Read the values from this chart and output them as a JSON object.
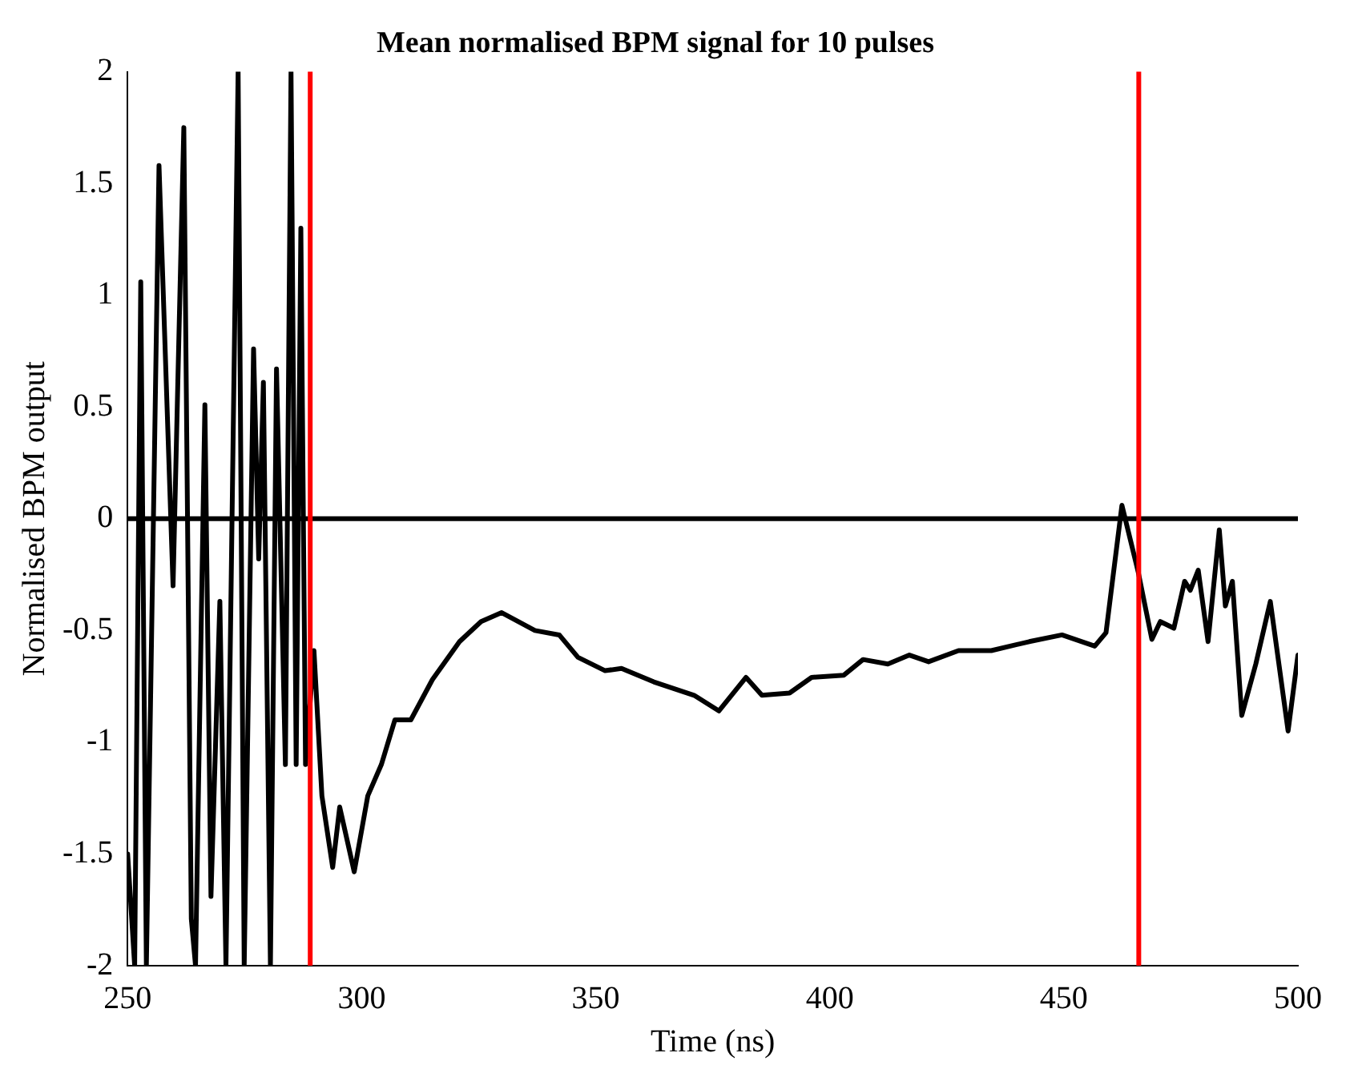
{
  "chart_data": {
    "type": "line",
    "title": "Mean normalised BPM signal for 10 pulses",
    "xlabel": "Time (ns)",
    "ylabel": "Normalised BPM output",
    "x": [
      250,
      251.5,
      252.8,
      254,
      256.7,
      259.7,
      262,
      263.6,
      264.5,
      266.5,
      267.8,
      269.7,
      271,
      273.6,
      274.9,
      276.9,
      278,
      279,
      280.5,
      281.8,
      283.7,
      284.9,
      286,
      287,
      288,
      289.8,
      291.5,
      293.8,
      295.3,
      298.4,
      301.3,
      304.2,
      307.1,
      310.5,
      315.1,
      320.9,
      325.5,
      329.9,
      337,
      342.2,
      346.2,
      352,
      355.5,
      362.4,
      371,
      376.3,
      382.1,
      385.5,
      391.4,
      396.1,
      403,
      407.1,
      412.4,
      417,
      421.1,
      427.5,
      434.5,
      442.6,
      449.6,
      456.6,
      459,
      462.4,
      465.9,
      468.8,
      470.6,
      473.5,
      475.8,
      477,
      478.7,
      480.8,
      483.2,
      484.5,
      486,
      488,
      491,
      494.1,
      497.9,
      500
    ],
    "series": [
      {
        "color": "#000000",
        "values": [
          -1.5,
          -2,
          1.06,
          -2,
          1.58,
          -0.3,
          1.75,
          -1.79,
          -2,
          0.51,
          -1.69,
          -0.37,
          -2,
          2,
          -2,
          0.76,
          -0.18,
          0.61,
          -2,
          0.67,
          -1.1,
          2,
          -1.1,
          1.3,
          -1.1,
          -0.59,
          -1.24,
          -1.56,
          -1.29,
          -1.58,
          -1.24,
          -1.1,
          -0.9,
          -0.9,
          -0.72,
          -0.55,
          -0.46,
          -0.42,
          -0.5,
          -0.52,
          -0.62,
          -0.68,
          -0.67,
          -0.73,
          -0.79,
          -0.86,
          -0.71,
          -0.79,
          -0.78,
          -0.71,
          -0.7,
          -0.63,
          -0.65,
          -0.61,
          -0.64,
          -0.59,
          -0.59,
          -0.55,
          -0.52,
          -0.57,
          -0.51,
          0.06,
          -0.24,
          -0.54,
          -0.46,
          -0.49,
          -0.28,
          -0.32,
          -0.23,
          -0.55,
          -0.05,
          -0.39,
          -0.28,
          -0.88,
          -0.65,
          -0.37,
          -0.95,
          -0.61
        ]
      }
    ],
    "xlim": [
      250,
      500
    ],
    "xticks": [
      250,
      300,
      350,
      400,
      450,
      500
    ],
    "ylim": [
      -2,
      2
    ],
    "yticks": [
      -2,
      -1.5,
      -1,
      -0.5,
      0,
      0.5,
      1,
      1.5,
      2
    ],
    "ref_lines": [
      {
        "axis": "y",
        "value": 0,
        "color": "#000000"
      },
      {
        "axis": "x",
        "value": 289,
        "color": "#ff0000"
      },
      {
        "axis": "x",
        "value": 466,
        "color": "#ff0000"
      }
    ],
    "grid": false,
    "legend": false,
    "marker": "none",
    "line_style": "solid"
  }
}
